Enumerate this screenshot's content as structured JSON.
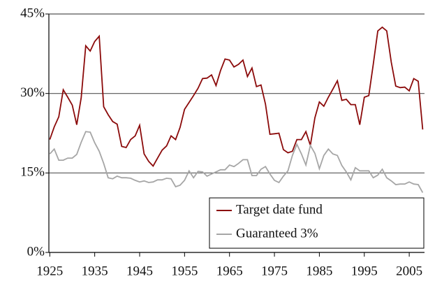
{
  "chart_data": {
    "type": "line",
    "x": [
      1925,
      1926,
      1927,
      1928,
      1929,
      1930,
      1931,
      1932,
      1933,
      1934,
      1935,
      1936,
      1937,
      1938,
      1939,
      1940,
      1941,
      1942,
      1943,
      1944,
      1945,
      1946,
      1947,
      1948,
      1949,
      1950,
      1951,
      1952,
      1953,
      1954,
      1955,
      1956,
      1957,
      1958,
      1959,
      1960,
      1961,
      1962,
      1963,
      1964,
      1965,
      1966,
      1967,
      1968,
      1969,
      1970,
      1971,
      1972,
      1973,
      1974,
      1975,
      1976,
      1977,
      1978,
      1979,
      1980,
      1981,
      1982,
      1983,
      1984,
      1985,
      1986,
      1987,
      1988,
      1989,
      1990,
      1991,
      1992,
      1993,
      1994,
      1995,
      1996,
      1997,
      1998,
      1999,
      2000,
      2001,
      2002,
      2003,
      2004,
      2005,
      2006,
      2007,
      2008
    ],
    "series": [
      {
        "name": "Target date fund",
        "color": "#8b0a0a",
        "values": [
          21.3,
          23.7,
          25.6,
          30.7,
          29.3,
          27.8,
          24.1,
          29.2,
          39,
          38,
          39.8,
          40.8,
          27.5,
          26,
          24.7,
          24.2,
          20,
          19.8,
          21.3,
          22,
          24,
          18.6,
          17.2,
          16.3,
          17.8,
          19.3,
          20.1,
          22,
          21.3,
          23.6,
          27,
          28.3,
          29.6,
          31,
          32.8,
          32.9,
          33.5,
          31.5,
          34.3,
          36.5,
          36.3,
          35,
          35.5,
          36.3,
          33.2,
          34.8,
          31.3,
          31.6,
          28,
          22.3,
          22.4,
          22.5,
          19.4,
          18.8,
          19.1,
          21.3,
          21.3,
          22.8,
          20.2,
          25.4,
          28.4,
          27.6,
          29.3,
          30.8,
          32.4,
          28.7,
          28.9,
          27.9,
          27.9,
          24.1,
          29.3,
          29.6,
          35.5,
          41.8,
          42.5,
          41.8,
          35.9,
          31.4,
          31.1,
          31.2,
          30.5,
          32.8,
          32.3,
          23.2
        ]
      },
      {
        "name": "Guaranteed 3%",
        "color": "#a6a6a6",
        "values": [
          18.6,
          19.5,
          17.4,
          17.4,
          17.8,
          17.8,
          18.5,
          20.8,
          22.8,
          22.7,
          20.7,
          19.1,
          16.8,
          14.1,
          13.9,
          14.4,
          14.1,
          14.1,
          14.0,
          13.6,
          13.3,
          13.5,
          13.2,
          13.3,
          13.7,
          13.7,
          14.0,
          13.9,
          12.4,
          12.7,
          13.6,
          15.4,
          14.1,
          15.3,
          15.2,
          14.4,
          14.8,
          15.2,
          15.6,
          15.6,
          16.5,
          16.2,
          16.8,
          17.5,
          17.5,
          14.5,
          14.5,
          15.7,
          16.2,
          14.8,
          13.6,
          13.2,
          14.4,
          15.4,
          18.3,
          20.4,
          18.6,
          16.5,
          20.2,
          18.7,
          15.8,
          18.3,
          19.5,
          18.6,
          18.3,
          16.4,
          15.2,
          13.7,
          16.0,
          15.4,
          15.4,
          15.4,
          14.1,
          14.6,
          15.7,
          14.1,
          13.5,
          12.8,
          12.9,
          12.9,
          13.3,
          12.9,
          12.8,
          11.3
        ]
      }
    ],
    "xlim": [
      1924.8,
      2008.4
    ],
    "xticks": [
      1925,
      1935,
      1945,
      1955,
      1965,
      1975,
      1985,
      1995,
      2005
    ],
    "ylim": [
      0,
      45
    ],
    "yticks": [
      {
        "value": 0,
        "label": "0%"
      },
      {
        "value": 15,
        "label": "15%"
      },
      {
        "value": 30,
        "label": "30%"
      },
      {
        "value": 45,
        "label": "45%"
      }
    ],
    "grid": true,
    "legend": "lower right"
  }
}
